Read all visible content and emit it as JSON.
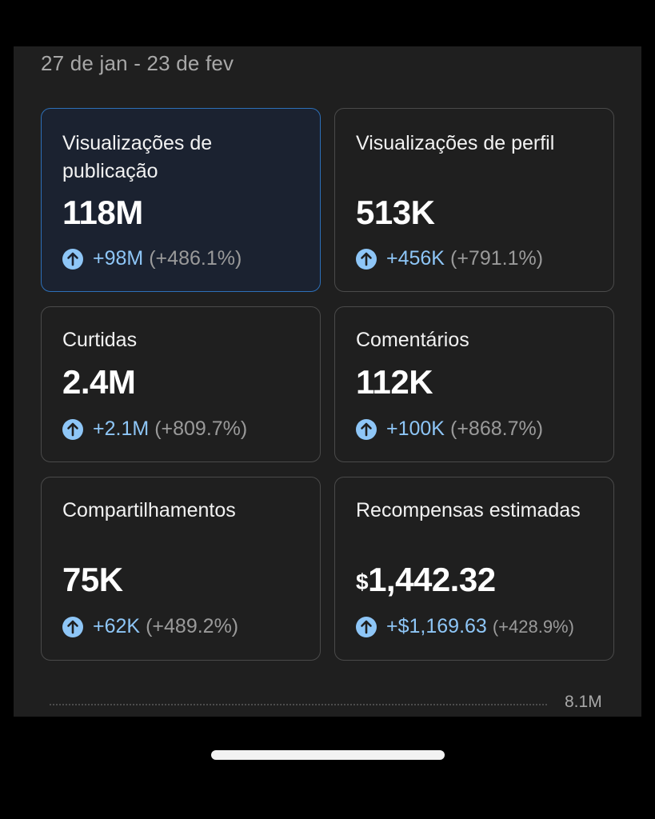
{
  "date_range": "27 de jan - 23 de fev",
  "cards": [
    {
      "title": "Visualizações de publicação",
      "value": "118M",
      "delta_abs": "+98M",
      "delta_pct": "(+486.1%)"
    },
    {
      "title": "Visualizações de perfil",
      "value": "513K",
      "delta_abs": "+456K",
      "delta_pct": "(+791.1%)"
    },
    {
      "title": "Curtidas",
      "value": "2.4M",
      "delta_abs": "+2.1M",
      "delta_pct": "(+809.7%)"
    },
    {
      "title": "Comentários",
      "value": "112K",
      "delta_abs": "+100K",
      "delta_pct": "(+868.7%)"
    },
    {
      "title": "Compartilhamentos",
      "value": "75K",
      "delta_abs": "+62K",
      "delta_pct": "(+489.2%)"
    },
    {
      "title": "Recompensas estimadas",
      "currency": "$",
      "value": "1,442.32",
      "delta_abs": "+$1,169.63",
      "delta_pct": "(+428.9%)"
    }
  ],
  "chart": {
    "max_label": "8.1M"
  },
  "colors": {
    "accent": "#8ec6f7",
    "selected_border": "#2d6fb8",
    "panel_bg": "#1f1f1f"
  }
}
